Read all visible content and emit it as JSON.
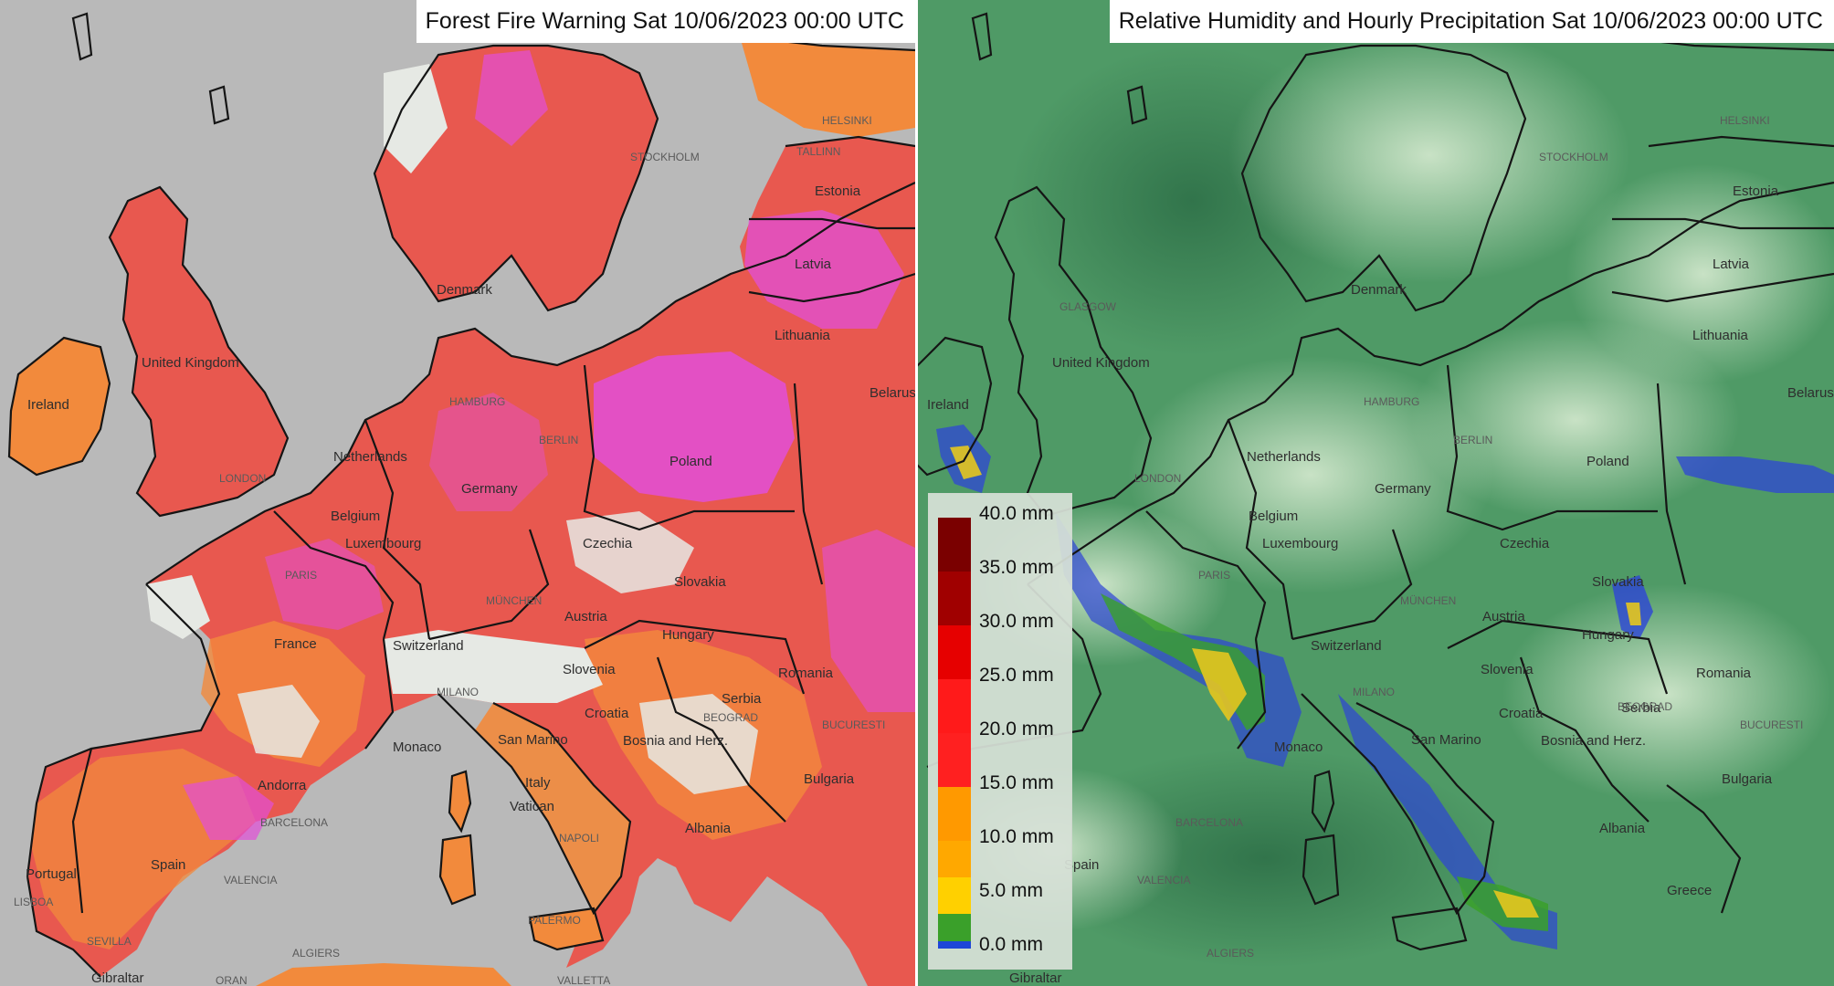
{
  "left_panel": {
    "title": "Forest Fire Warning Sat  10/06/2023  00:00 UTC",
    "labels": [
      "Ireland",
      "United Kingdom",
      "Denmark",
      "Netherlands",
      "Belgium",
      "Luxembourg",
      "Germany",
      "Poland",
      "Czechia",
      "Slovakia",
      "Austria",
      "Hungary",
      "Switzerland",
      "Slovenia",
      "Croatia",
      "Bosnia and Herz.",
      "Romania",
      "Bulgaria",
      "Serbia",
      "Albania",
      "France",
      "Monaco",
      "San Marino",
      "Italy",
      "Vatican",
      "Spain",
      "Andorra",
      "Portugal",
      "Gibraltar",
      "Estonia",
      "Latvia",
      "Lithuania",
      "Belarus"
    ],
    "cities": [
      "LONDON",
      "PARIS",
      "HAMBURG",
      "BERLIN",
      "MÜNCHEN",
      "MILANO",
      "NAPOLI",
      "BARCELONA",
      "VALENCIA",
      "SEVILLA",
      "LISBOA",
      "BUCURESTI",
      "BEOGRAD",
      "STOCKHOLM",
      "HELSINKI",
      "TALLINN",
      "ALGIERS",
      "PALERMO",
      "VALLETTA",
      "ORAN"
    ]
  },
  "right_panel": {
    "title": "Relative Humidity and Hourly Precipitation Sat  10/06/2023  00:00 UTC",
    "labels": [
      "Ireland",
      "United Kingdom",
      "Denmark",
      "Netherlands",
      "Belgium",
      "Luxembourg",
      "Germany",
      "Poland",
      "Czechia",
      "Slovakia",
      "Austria",
      "Hungary",
      "Switzerland",
      "Slovenia",
      "Croatia",
      "Bosnia and Herz.",
      "Romania",
      "Bulgaria",
      "Serbia",
      "Greece",
      "Albania",
      "Monaco",
      "San Marino",
      "Spain",
      "Gibraltar",
      "Estonia",
      "Latvia",
      "Lithuania",
      "Belarus"
    ],
    "cities": [
      "LONDON",
      "PARIS",
      "HAMBURG",
      "BERLIN",
      "MÜNCHEN",
      "MILANO",
      "BARCELONA",
      "VALENCIA",
      "BUCURESTI",
      "BEOGRAD",
      "STOCKHOLM",
      "HELSINKI",
      "ALGIERS",
      "GLASGOW"
    ]
  },
  "legend": {
    "labels": [
      "40.0 mm",
      "35.0 mm",
      "30.0 mm",
      "25.0 mm",
      "20.0 mm",
      "15.0 mm",
      "10.0 mm",
      "5.0 mm",
      "0.0 mm"
    ],
    "colors": [
      "#7a0000",
      "#a00000",
      "#e60000",
      "#ff1a1a",
      "#ff2020",
      "#ff9900",
      "#ffa800",
      "#ffd000",
      "#3aa02a",
      "#1e46d8"
    ]
  },
  "colors": {
    "fire_orange": "#f28a3c",
    "fire_red": "#e8584f",
    "fire_magenta": "#e24fd8",
    "fire_white": "#e6e9e4",
    "humidity_dark": "#3f8a59",
    "humidity_light": "#cfe6c9",
    "precip_blue": "#2d45d6",
    "precip_yellow": "#e6c71e"
  }
}
